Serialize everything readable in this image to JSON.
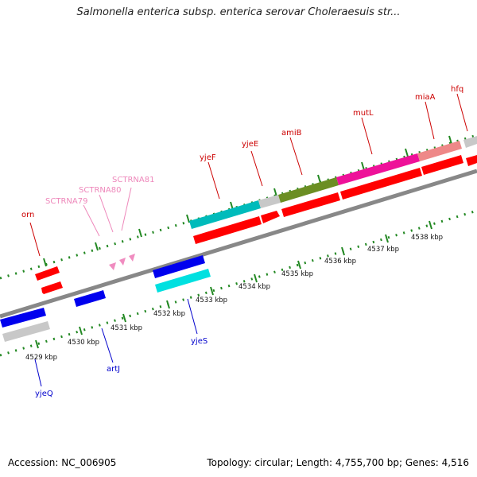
{
  "title": "Salmonella enterica subsp. enterica serovar Choleraesuis str...",
  "footer": {
    "accession": "Accession: NC_006905",
    "topology": "Topology: circular; Length: 4,755,700 bp; Genes: 4,516"
  },
  "scale": {
    "labels": [
      "4529 kbp",
      "4530 kbp",
      "4531 kbp",
      "4532 kbp",
      "4533 kbp",
      "4534 kbp",
      "4535 kbp",
      "4536 kbp",
      "4537 kbp",
      "4538 kbp"
    ]
  },
  "genes_top": [
    {
      "name": "orn",
      "color": "#cc0000"
    },
    {
      "name": "SCTRNA79",
      "color": "#ee88bb"
    },
    {
      "name": "SCTRNA80",
      "color": "#ee88bb"
    },
    {
      "name": "SCTRNA81",
      "color": "#ee88bb"
    },
    {
      "name": "yjeF",
      "color": "#cc0000"
    },
    {
      "name": "yjeE",
      "color": "#cc0000"
    },
    {
      "name": "amiB",
      "color": "#cc0000"
    },
    {
      "name": "mutL",
      "color": "#cc0000"
    },
    {
      "name": "miaA",
      "color": "#cc0000"
    },
    {
      "name": "hfq",
      "color": "#cc0000"
    }
  ],
  "genes_bottom": [
    {
      "name": "yjeQ",
      "color": "#0000cc"
    },
    {
      "name": "artJ",
      "color": "#0000cc"
    },
    {
      "name": "yjeS",
      "color": "#0000cc"
    }
  ],
  "colors": {
    "forward_cds": "#ff0000",
    "reverse_cds": "#0000ee",
    "trna": "#f08cc0",
    "backbone": "#888888",
    "ticks": "#228822",
    "cyan": "#00cccc",
    "grey": "#c8c8c8",
    "olive": "#6b8e23",
    "magenta": "#ee1199",
    "salmon": "#ee8888"
  }
}
